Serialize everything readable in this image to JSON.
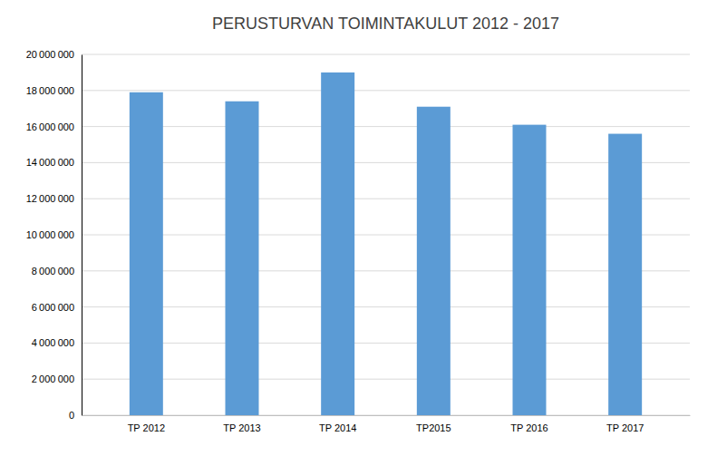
{
  "chart_data": {
    "type": "bar",
    "title": "PERUSTURVAN TOIMINTAKULUT 2012 - 2017",
    "categories": [
      "TP 2012",
      "TP 2013",
      "TP 2014",
      "TP2015",
      "TP 2016",
      "TP 2017"
    ],
    "values": [
      17900000,
      17400000,
      19000000,
      17100000,
      16100000,
      15600000
    ],
    "color": "#5b9bd5",
    "ylim": [
      0,
      20000000
    ],
    "yticks": [
      0,
      {
        "value": 2000000,
        "label": "2 000 000"
      },
      {
        "value": 4000000,
        "label": "4 000 000"
      },
      {
        "value": 6000000,
        "label": "6 000 000"
      },
      {
        "value": 8000000,
        "label": "8 000 000"
      },
      {
        "value": 10000000,
        "label": "10 000 000"
      },
      {
        "value": 12000000,
        "label": "12 000 000"
      },
      {
        "value": 14000000,
        "label": "14 000 000"
      },
      {
        "value": 16000000,
        "label": "16 000 000"
      },
      {
        "value": 18000000,
        "label": "18 000 000"
      },
      {
        "value": 20000000,
        "label": "20 000 000"
      }
    ],
    "grid": true
  }
}
